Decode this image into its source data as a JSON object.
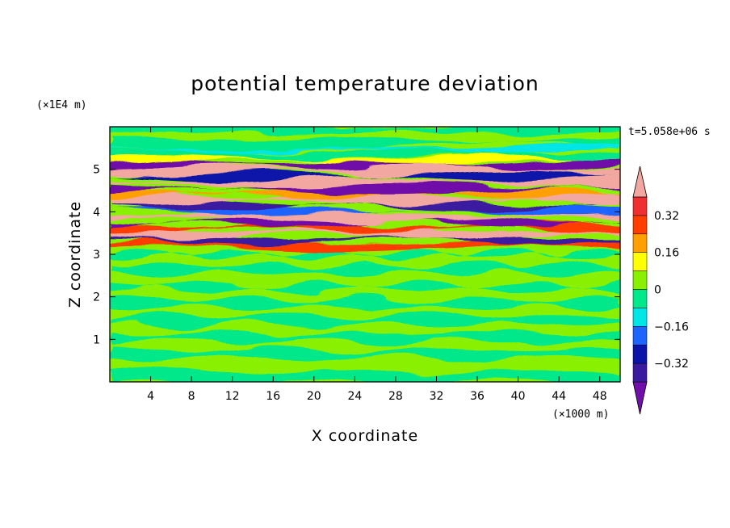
{
  "chart_data": {
    "type": "heatmap",
    "title": "potential temperature deviation",
    "xlabel": "X coordinate",
    "ylabel": "Z coordinate",
    "x_unit": "(×1000 m)",
    "y_unit": "(×1E4 m)",
    "time_label": "t=5.058e+06 s",
    "xlim": [
      0,
      50
    ],
    "ylim": [
      0,
      6
    ],
    "x_ticks": [
      4,
      8,
      12,
      16,
      20,
      24,
      28,
      32,
      36,
      40,
      44,
      48
    ],
    "y_ticks": [
      1,
      2,
      3,
      4,
      5
    ],
    "colorbar": {
      "levels": [
        -0.4,
        -0.32,
        -0.24,
        -0.16,
        -0.08,
        0,
        0.08,
        0.16,
        0.24,
        0.32,
        0.4
      ],
      "tick_values": [
        -0.32,
        -0.16,
        0,
        0.16,
        0.32
      ],
      "tick_labels": [
        "−0.32",
        "−0.16",
        "0",
        "0.16",
        "0.32"
      ],
      "colors": [
        "#7010a8",
        "#3a1aa0",
        "#0a14a8",
        "#1e64ff",
        "#00e6e6",
        "#00e88a",
        "#88f000",
        "#ffff00",
        "#ffa000",
        "#ff3e00",
        "#f03030",
        "#f2a8a0"
      ],
      "extend": "both"
    },
    "colors": {
      "background_field": "#88f000",
      "near_zero_negative": "#00e88a"
    }
  }
}
